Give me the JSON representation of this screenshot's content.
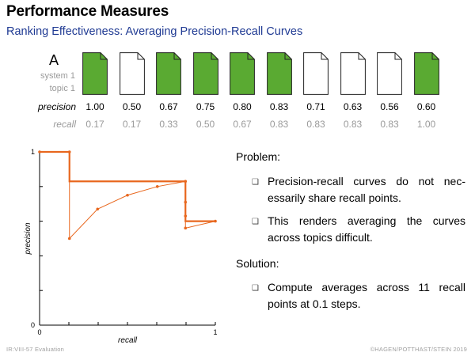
{
  "header": {
    "title": "Performance Measures",
    "subtitle": "Ranking Effectiveness: Averaging Precision-Recall Curves"
  },
  "ranking": {
    "system_letter": "A",
    "system_label": "system 1",
    "topic_label": "topic 1",
    "precision_label": "precision",
    "recall_label": "recall",
    "relevant_color": "#5aaa32",
    "docs": [
      {
        "relevant": true,
        "precision": "1.00",
        "recall": "0.17"
      },
      {
        "relevant": false,
        "precision": "0.50",
        "recall": "0.17"
      },
      {
        "relevant": true,
        "precision": "0.67",
        "recall": "0.33"
      },
      {
        "relevant": true,
        "precision": "0.75",
        "recall": "0.50"
      },
      {
        "relevant": true,
        "precision": "0.80",
        "recall": "0.67"
      },
      {
        "relevant": true,
        "precision": "0.83",
        "recall": "0.83"
      },
      {
        "relevant": false,
        "precision": "0.71",
        "recall": "0.83"
      },
      {
        "relevant": false,
        "precision": "0.63",
        "recall": "0.83"
      },
      {
        "relevant": false,
        "precision": "0.56",
        "recall": "0.83"
      },
      {
        "relevant": true,
        "precision": "0.60",
        "recall": "1.00"
      }
    ]
  },
  "chart": {
    "xlabel": "recall",
    "ylabel": "precision",
    "x_ticks": [
      "0",
      "1"
    ],
    "y_ticks": [
      "0",
      "1"
    ],
    "line_color": "#e8671e",
    "raw_points": [
      [
        0,
        1
      ],
      [
        0.17,
        1
      ],
      [
        0.17,
        0.5
      ],
      [
        0.33,
        0.67
      ],
      [
        0.5,
        0.75
      ],
      [
        0.67,
        0.8
      ],
      [
        0.83,
        0.83
      ],
      [
        0.83,
        0.71
      ],
      [
        0.83,
        0.63
      ],
      [
        0.83,
        0.56
      ],
      [
        1,
        0.6
      ]
    ],
    "interpolated": [
      [
        0,
        1
      ],
      [
        0.17,
        1
      ],
      [
        0.17,
        0.83
      ],
      [
        0.83,
        0.83
      ],
      [
        0.83,
        0.6
      ],
      [
        1,
        0.6
      ]
    ]
  },
  "problem": {
    "heading": "Problem:",
    "bullets": [
      "Precision-recall curves do not nec- essarily share recall points.",
      "This renders averaging the curves across topics difficult."
    ]
  },
  "solution": {
    "heading": "Solution:",
    "bullets": [
      "Compute averages across 11 recall points at 0.1 steps."
    ]
  },
  "footer": {
    "left": "IR:VIII-57    Evaluation",
    "right": "©HAGEN/POTTHAST/STEIN 2019"
  }
}
